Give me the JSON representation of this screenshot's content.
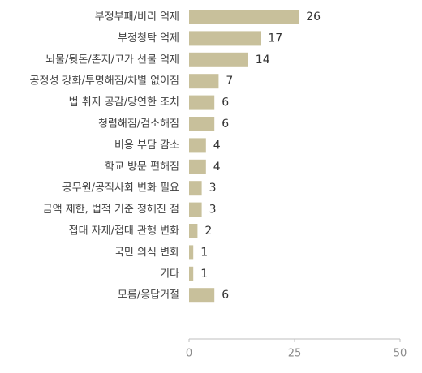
{
  "chart_data": {
    "type": "bar",
    "orientation": "horizontal",
    "categories": [
      "부정부패/비리 억제",
      "부정청탁 억제",
      "뇌물/뒷돈/촌지/고가 선물 억제",
      "공정성 강화/투명해짐/차별 없어짐",
      "법 취지 공감/당연한 조치",
      "청렴해짐/검소해짐",
      "비용 부담 감소",
      "학교 방문 편해짐",
      "공무원/공직사회 변화 필요",
      "금액 제한, 법적 기준 정해진 점",
      "접대 자제/접대 관행 변화",
      "국민 의식 변화",
      "기타",
      "모름/응답거절"
    ],
    "values": [
      26,
      17,
      14,
      7,
      6,
      6,
      4,
      4,
      3,
      3,
      2,
      1,
      1,
      6
    ],
    "xlim": [
      0,
      50
    ],
    "xticks": [
      0,
      25,
      50
    ],
    "title": "",
    "xlabel": "",
    "ylabel": "",
    "grid": false,
    "bar_color": "#c8c09b",
    "axis_color": "#bfbfbf"
  }
}
